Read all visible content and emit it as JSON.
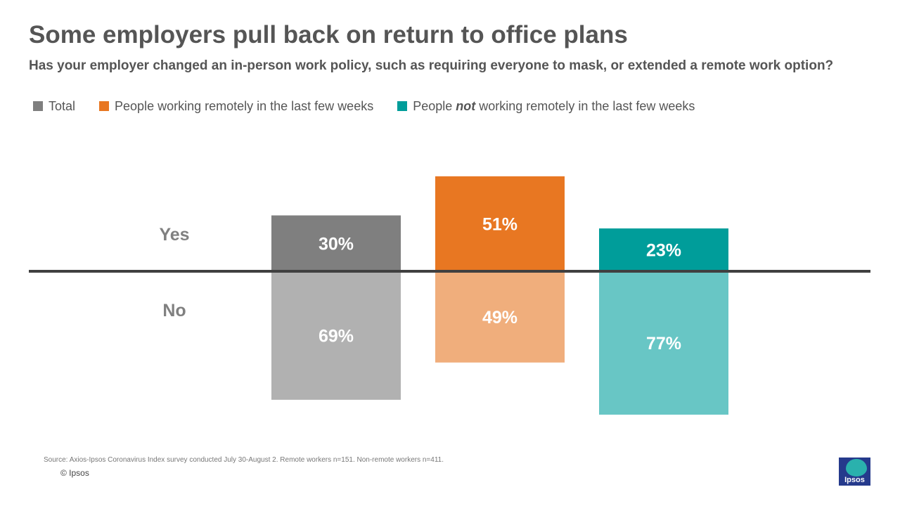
{
  "title": "Some employers pull back on return to office plans",
  "subtitle": "Has your employer changed an in-person work policy, such as requiring everyone to mask, or extended a remote work option?",
  "legend": [
    {
      "pre": "Total",
      "em": "",
      "post": "",
      "color": "#7f7f7f"
    },
    {
      "pre": "People working remotely in the last few weeks",
      "em": "",
      "post": "",
      "color": "#e87722"
    },
    {
      "pre": "People ",
      "em": "not",
      "post": " working remotely in the last few weeks",
      "color": "#009d9a"
    }
  ],
  "chart_data": {
    "type": "bar",
    "orientation": "diverging-vertical",
    "categories": [
      "Yes",
      "No"
    ],
    "series": [
      {
        "name": "Total",
        "values": [
          30,
          69
        ],
        "labels": [
          "30%",
          "69%"
        ],
        "colors": [
          "#7f7f7f",
          "#b1b1b1"
        ]
      },
      {
        "name": "People working remotely in the last few weeks",
        "values": [
          51,
          49
        ],
        "labels": [
          "51%",
          "49%"
        ],
        "colors": [
          "#e87722",
          "#f0ae7c"
        ]
      },
      {
        "name": "People not working remotely in the last few weeks",
        "values": [
          23,
          77
        ],
        "labels": [
          "23%",
          "77%"
        ],
        "colors": [
          "#009d9a",
          "#68c6c5"
        ]
      }
    ],
    "unit": "%",
    "baseline_color": "#404040"
  },
  "footer": {
    "source": "Source: Axios-Ipsos Coronavirus Index survey conducted July 30-August 2. Remote  workers n=151. Non-remote workers n=411.",
    "copyright": "© Ipsos"
  },
  "logo": {
    "text": "Ipsos"
  }
}
